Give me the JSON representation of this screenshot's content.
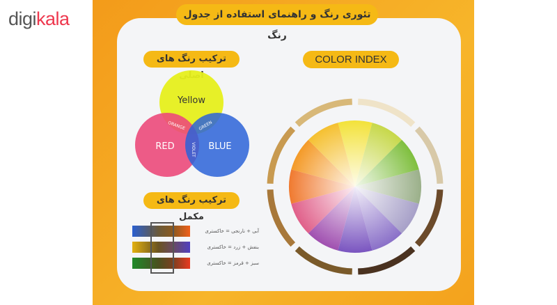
{
  "logo": {
    "brand": "digikala",
    "prefix": "digi",
    "suffix": "kala"
  },
  "board": {
    "title": "تئوری رنگ و راهنمای استفاده از جدول رنگ",
    "primary_section": {
      "heading": "ترکیب رنگ های اصلی",
      "circles": [
        "Yellow",
        "RED",
        "BLUE"
      ],
      "overlaps": [
        "ORANGE",
        "GREEN",
        "VIOLET"
      ],
      "colors": {
        "yellow": "#e6ef1c",
        "red": "#ec4a7a",
        "blue": "#2b63d8"
      }
    },
    "complementary_section": {
      "heading": "ترکیب رنگ های مکمل",
      "rows": [
        {
          "label": "آبی + نارنجی = خاکستری"
        },
        {
          "label": "بنفش + زرد = خاکستری"
        },
        {
          "label": "سبز + قرمز = خاکستری"
        }
      ]
    },
    "color_index": {
      "heading": "COLOR INDEX"
    }
  },
  "colors": {
    "board": "#f5a622",
    "pill": "#f5b915",
    "panel": "#f4f5f7"
  }
}
